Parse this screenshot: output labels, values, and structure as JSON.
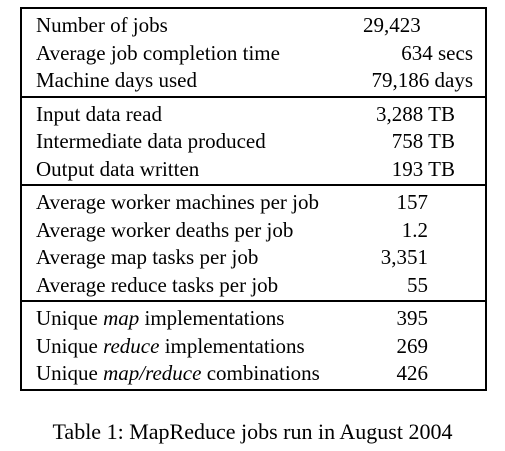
{
  "table": {
    "groups": [
      {
        "rows": [
          {
            "label": "Number of jobs",
            "value": "29,423"
          },
          {
            "label": "Average job completion time",
            "value": "634 secs"
          },
          {
            "label": "Machine days used",
            "value": "79,186 days"
          }
        ]
      },
      {
        "rows": [
          {
            "label": "Input data read",
            "value": "3,288 TB"
          },
          {
            "label": "Intermediate data produced",
            "value": "758 TB"
          },
          {
            "label": "Output data written",
            "value": "193 TB"
          }
        ]
      },
      {
        "rows": [
          {
            "label": "Average worker machines per job",
            "value": "157"
          },
          {
            "label": "Average worker deaths per job",
            "value": "1.2"
          },
          {
            "label": "Average map tasks per job",
            "value": "3,351"
          },
          {
            "label": "Average reduce tasks per job",
            "value": "55"
          }
        ]
      },
      {
        "rows": [
          {
            "label_pre": "Unique ",
            "label_em": "map",
            "label_post": " implementations",
            "value": "395"
          },
          {
            "label_pre": "Unique ",
            "label_em": "reduce",
            "label_post": " implementations",
            "value": "269"
          },
          {
            "label_pre": "Unique ",
            "label_em": "map/reduce",
            "label_post": " combinations",
            "value": "426"
          }
        ]
      }
    ]
  },
  "caption": "Table 1: MapReduce jobs run in August 2004"
}
